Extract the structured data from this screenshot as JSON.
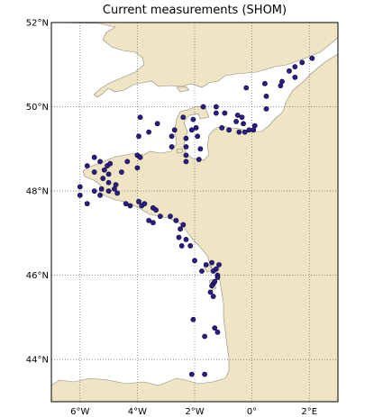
{
  "title": "Current measurements (SHOM)",
  "colors": {
    "land": "#efe4c4",
    "sea": "#ffffff",
    "marker": "#2a1d8a",
    "marker_edge": "#0b0830",
    "grid": "#555555"
  },
  "map": {
    "lon_range": [
      -7,
      3
    ],
    "lat_range": [
      43,
      52
    ],
    "lat_ticks": [
      {
        "value": 52,
        "label": "52°N"
      },
      {
        "value": 50,
        "label": "50°N"
      },
      {
        "value": 48,
        "label": "48°N"
      },
      {
        "value": 46,
        "label": "46°N"
      },
      {
        "value": 44,
        "label": "44°N"
      }
    ],
    "lon_ticks": [
      {
        "value": -6,
        "label": "6°W"
      },
      {
        "value": -4,
        "label": "4°W"
      },
      {
        "value": -2,
        "label": "2°W"
      },
      {
        "value": 0,
        "label": "0°"
      },
      {
        "value": 2,
        "label": "2°E"
      }
    ]
  },
  "stations": [
    [
      -3.9,
      49.75
    ],
    [
      -3.3,
      49.6
    ],
    [
      -3.6,
      49.4
    ],
    [
      -2.7,
      49.45
    ],
    [
      -2.4,
      49.75
    ],
    [
      -2.05,
      49.7
    ],
    [
      -1.7,
      50.0
    ],
    [
      -1.25,
      50.0
    ],
    [
      -1.25,
      49.85
    ],
    [
      -0.95,
      49.85
    ],
    [
      -0.5,
      49.8
    ],
    [
      -0.35,
      49.75
    ],
    [
      -0.3,
      49.6
    ],
    [
      -0.55,
      49.65
    ],
    [
      -0.2,
      50.45
    ],
    [
      0.45,
      50.55
    ],
    [
      0.5,
      50.25
    ],
    [
      0.5,
      49.95
    ],
    [
      1.0,
      50.5
    ],
    [
      1.05,
      50.6
    ],
    [
      1.3,
      50.85
    ],
    [
      1.5,
      50.7
    ],
    [
      1.5,
      50.95
    ],
    [
      1.75,
      51.05
    ],
    [
      2.1,
      51.15
    ],
    [
      0.1,
      49.55
    ],
    [
      0.05,
      49.45
    ],
    [
      -0.1,
      49.45
    ],
    [
      -0.25,
      49.4
    ],
    [
      -0.45,
      49.4
    ],
    [
      -0.8,
      49.45
    ],
    [
      -1.05,
      49.5
    ],
    [
      -1.95,
      49.5
    ],
    [
      -2.1,
      49.45
    ],
    [
      -1.9,
      49.3
    ],
    [
      -2.3,
      49.25
    ],
    [
      -2.3,
      49.05
    ],
    [
      -2.8,
      49.3
    ],
    [
      -2.8,
      49.05
    ],
    [
      -3.95,
      49.3
    ],
    [
      -4.0,
      48.85
    ],
    [
      -3.9,
      48.8
    ],
    [
      -2.3,
      48.85
    ],
    [
      -2.3,
      48.7
    ],
    [
      -1.85,
      48.75
    ],
    [
      -1.8,
      49.0
    ],
    [
      -6.0,
      48.1
    ],
    [
      -6.0,
      47.9
    ],
    [
      -5.75,
      48.6
    ],
    [
      -5.5,
      48.45
    ],
    [
      -5.5,
      48.8
    ],
    [
      -5.3,
      48.7
    ],
    [
      -5.15,
      48.5
    ],
    [
      -5.05,
      48.6
    ],
    [
      -5.0,
      48.4
    ],
    [
      -4.95,
      48.65
    ],
    [
      -5.2,
      48.3
    ],
    [
      -5.0,
      48.2
    ],
    [
      -4.75,
      48.15
    ],
    [
      -4.8,
      48.05
    ],
    [
      -5.0,
      48.0
    ],
    [
      -5.25,
      48.05
    ],
    [
      -5.5,
      48.0
    ],
    [
      -5.75,
      47.7
    ],
    [
      -5.3,
      47.9
    ],
    [
      -4.7,
      47.95
    ],
    [
      -4.4,
      47.7
    ],
    [
      -4.25,
      47.65
    ],
    [
      -3.95,
      47.75
    ],
    [
      -3.75,
      47.7
    ],
    [
      -3.85,
      47.65
    ],
    [
      -3.45,
      47.6
    ],
    [
      -3.35,
      47.55
    ],
    [
      -3.2,
      47.4
    ],
    [
      -3.6,
      47.3
    ],
    [
      -3.45,
      47.25
    ],
    [
      -2.85,
      47.4
    ],
    [
      -2.65,
      47.3
    ],
    [
      -2.5,
      47.1
    ],
    [
      -2.4,
      47.2
    ],
    [
      -2.55,
      46.9
    ],
    [
      -2.3,
      46.85
    ],
    [
      -2.15,
      46.7
    ],
    [
      -2.45,
      46.7
    ],
    [
      -2.0,
      46.35
    ],
    [
      -1.75,
      46.1
    ],
    [
      -1.6,
      46.25
    ],
    [
      -1.4,
      46.3
    ],
    [
      -1.35,
      46.1
    ],
    [
      -1.25,
      46.15
    ],
    [
      -1.2,
      46.0
    ],
    [
      -1.15,
      46.25
    ],
    [
      -1.2,
      45.95
    ],
    [
      -1.35,
      45.8
    ],
    [
      -1.45,
      45.6
    ],
    [
      -1.35,
      45.5
    ],
    [
      -1.3,
      45.85
    ],
    [
      -1.4,
      45.75
    ],
    [
      -2.05,
      44.95
    ],
    [
      -1.65,
      44.55
    ],
    [
      -1.3,
      44.75
    ],
    [
      -1.2,
      44.65
    ],
    [
      -2.1,
      43.65
    ],
    [
      -1.65,
      43.65
    ],
    [
      -4.55,
      48.45
    ],
    [
      -4.35,
      48.7
    ],
    [
      -4.0,
      48.55
    ]
  ]
}
